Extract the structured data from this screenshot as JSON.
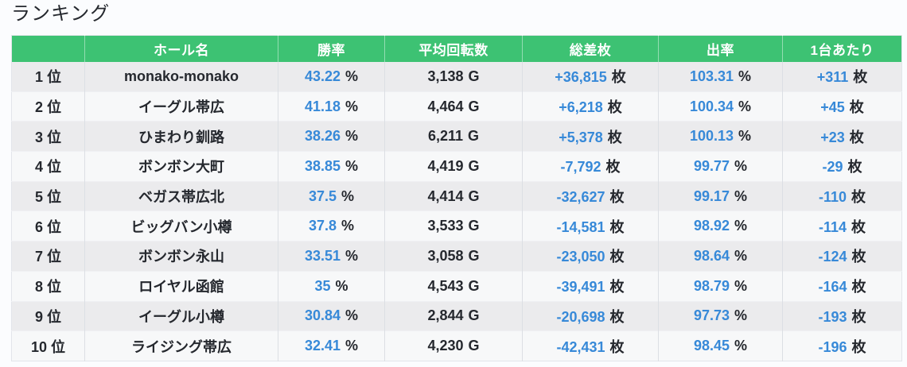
{
  "title": "ランキング",
  "colors": {
    "page_bg": "#fbfcfe",
    "header_bg": "#3dc273",
    "header_text": "#ffffff",
    "value_blue": "#3789d8",
    "text_dark": "#25282e",
    "row_odd_bg": "#ebebed",
    "row_even_bg": "#f7f8f9"
  },
  "table": {
    "columns": [
      {
        "id": "rank",
        "label": "",
        "unit": "",
        "blue": false
      },
      {
        "id": "hall",
        "label": "ホール名",
        "unit": "",
        "blue": false
      },
      {
        "id": "win_rate",
        "label": "勝率",
        "unit": "%",
        "blue": true
      },
      {
        "id": "avg_spins",
        "label": "平均回転数",
        "unit": "G",
        "blue": false
      },
      {
        "id": "total_diff",
        "label": "総差枚",
        "unit": "枚",
        "blue": true
      },
      {
        "id": "payout_rate",
        "label": "出率",
        "unit": "%",
        "blue": true
      },
      {
        "id": "per_machine",
        "label": "1台あたり",
        "unit": "枚",
        "blue": true
      }
    ],
    "rows": [
      {
        "rank": "1 位",
        "hall": "monako-monako",
        "win_rate": "43.22",
        "avg_spins": "3,138",
        "total_diff": "+36,815",
        "payout_rate": "103.31",
        "per_machine": "+311"
      },
      {
        "rank": "2 位",
        "hall": "イーグル帯広",
        "win_rate": "41.18",
        "avg_spins": "4,464",
        "total_diff": "+6,218",
        "payout_rate": "100.34",
        "per_machine": "+45"
      },
      {
        "rank": "3 位",
        "hall": "ひまわり釧路",
        "win_rate": "38.26",
        "avg_spins": "6,211",
        "total_diff": "+5,378",
        "payout_rate": "100.13",
        "per_machine": "+23"
      },
      {
        "rank": "4 位",
        "hall": "ボンボン大町",
        "win_rate": "38.85",
        "avg_spins": "4,419",
        "total_diff": "-7,792",
        "payout_rate": "99.77",
        "per_machine": "-29"
      },
      {
        "rank": "5 位",
        "hall": "ベガス帯広北",
        "win_rate": "37.5",
        "avg_spins": "4,414",
        "total_diff": "-32,627",
        "payout_rate": "99.17",
        "per_machine": "-110"
      },
      {
        "rank": "6 位",
        "hall": "ビッグバン小樽",
        "win_rate": "37.8",
        "avg_spins": "3,533",
        "total_diff": "-14,581",
        "payout_rate": "98.92",
        "per_machine": "-114"
      },
      {
        "rank": "7 位",
        "hall": "ボンボン永山",
        "win_rate": "33.51",
        "avg_spins": "3,058",
        "total_diff": "-23,050",
        "payout_rate": "98.64",
        "per_machine": "-124"
      },
      {
        "rank": "8 位",
        "hall": "ロイヤル函館",
        "win_rate": "35",
        "avg_spins": "4,543",
        "total_diff": "-39,491",
        "payout_rate": "98.79",
        "per_machine": "-164"
      },
      {
        "rank": "9 位",
        "hall": "イーグル小樽",
        "win_rate": "30.84",
        "avg_spins": "2,844",
        "total_diff": "-20,698",
        "payout_rate": "97.73",
        "per_machine": "-193"
      },
      {
        "rank": "10 位",
        "hall": "ライジング帯広",
        "win_rate": "32.41",
        "avg_spins": "4,230",
        "total_diff": "-42,431",
        "payout_rate": "98.45",
        "per_machine": "-196"
      }
    ]
  }
}
